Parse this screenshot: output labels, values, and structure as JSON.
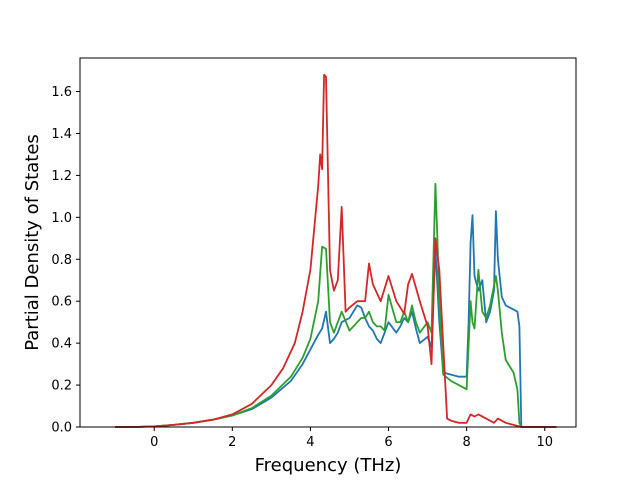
{
  "chart_data": {
    "type": "line",
    "title": "",
    "xlabel": "Frequency (THz)",
    "ylabel": "Partial Density of States",
    "xlim": [
      -1.9,
      10.8
    ],
    "ylim": [
      0.0,
      1.76
    ],
    "xticks": [
      0,
      2,
      4,
      6,
      8,
      10
    ],
    "yticks": [
      0.0,
      0.2,
      0.4,
      0.6,
      0.8,
      1.0,
      1.2,
      1.4,
      1.6
    ],
    "xtick_labels": [
      "0",
      "2",
      "4",
      "6",
      "8",
      "10"
    ],
    "ytick_labels": [
      "0.0",
      "0.2",
      "0.4",
      "0.6",
      "0.8",
      "1.0",
      "1.2",
      "1.4",
      "1.6"
    ],
    "grid": false,
    "legend": "none",
    "series": [
      {
        "color": "#1f77b4",
        "x": [
          -1.0,
          -0.5,
          0.0,
          0.5,
          1.0,
          1.5,
          2.0,
          2.5,
          3.0,
          3.5,
          3.8,
          4.0,
          4.2,
          4.3,
          4.4,
          4.5,
          4.6,
          4.7,
          4.8,
          5.0,
          5.2,
          5.3,
          5.4,
          5.5,
          5.6,
          5.7,
          5.8,
          5.9,
          6.0,
          6.2,
          6.3,
          6.4,
          6.5,
          6.6,
          6.7,
          6.8,
          7.0,
          7.1,
          7.2,
          7.3,
          7.4,
          7.6,
          7.8,
          8.0,
          8.05,
          8.1,
          8.15,
          8.2,
          8.3,
          8.4,
          8.5,
          8.6,
          8.7,
          8.75,
          8.8,
          8.9,
          9.0,
          9.2,
          9.3,
          9.35,
          9.4,
          10.0,
          10.3
        ],
        "y": [
          0.0,
          0.0,
          0.003,
          0.01,
          0.02,
          0.035,
          0.055,
          0.085,
          0.14,
          0.22,
          0.3,
          0.37,
          0.44,
          0.47,
          0.55,
          0.4,
          0.42,
          0.45,
          0.5,
          0.52,
          0.58,
          0.57,
          0.52,
          0.48,
          0.46,
          0.42,
          0.4,
          0.45,
          0.5,
          0.45,
          0.48,
          0.52,
          0.5,
          0.55,
          0.47,
          0.4,
          0.43,
          0.38,
          0.85,
          0.5,
          0.26,
          0.25,
          0.24,
          0.24,
          0.5,
          0.88,
          1.01,
          0.72,
          0.65,
          0.7,
          0.5,
          0.55,
          0.65,
          1.03,
          0.8,
          0.62,
          0.58,
          0.56,
          0.55,
          0.48,
          0.0,
          0.0,
          0.0
        ]
      },
      {
        "color": "#2ca02c",
        "x": [
          -1.0,
          -0.5,
          0.0,
          0.5,
          1.0,
          1.5,
          2.0,
          2.5,
          3.0,
          3.5,
          3.8,
          4.0,
          4.2,
          4.3,
          4.4,
          4.5,
          4.6,
          4.7,
          4.8,
          5.0,
          5.2,
          5.3,
          5.4,
          5.5,
          5.6,
          5.7,
          5.8,
          5.9,
          6.0,
          6.2,
          6.3,
          6.4,
          6.5,
          6.6,
          6.7,
          6.8,
          7.0,
          7.1,
          7.2,
          7.25,
          7.3,
          7.4,
          7.6,
          7.8,
          8.0,
          8.1,
          8.15,
          8.2,
          8.3,
          8.4,
          8.5,
          8.6,
          8.75,
          8.8,
          8.9,
          9.0,
          9.2,
          9.3,
          9.35,
          9.4,
          10.0
        ],
        "y": [
          0.0,
          0.0,
          0.003,
          0.01,
          0.02,
          0.035,
          0.055,
          0.09,
          0.15,
          0.24,
          0.33,
          0.42,
          0.6,
          0.86,
          0.85,
          0.5,
          0.45,
          0.5,
          0.55,
          0.46,
          0.5,
          0.52,
          0.52,
          0.55,
          0.5,
          0.48,
          0.48,
          0.46,
          0.63,
          0.5,
          0.5,
          0.55,
          0.5,
          0.58,
          0.5,
          0.45,
          0.5,
          0.45,
          1.16,
          0.9,
          0.6,
          0.25,
          0.22,
          0.2,
          0.18,
          0.6,
          0.5,
          0.47,
          0.75,
          0.55,
          0.52,
          0.58,
          0.72,
          0.65,
          0.45,
          0.32,
          0.26,
          0.18,
          0.02,
          0.0,
          0.0
        ]
      },
      {
        "color": "#d62728",
        "x": [
          -1.0,
          -0.5,
          0.0,
          0.5,
          1.0,
          1.5,
          2.0,
          2.5,
          3.0,
          3.3,
          3.6,
          3.8,
          4.0,
          4.1,
          4.2,
          4.25,
          4.3,
          4.35,
          4.4,
          4.5,
          4.6,
          4.7,
          4.8,
          4.9,
          5.0,
          5.2,
          5.4,
          5.5,
          5.6,
          5.8,
          6.0,
          6.2,
          6.4,
          6.5,
          6.6,
          6.8,
          7.0,
          7.1,
          7.2,
          7.3,
          7.5,
          7.6,
          7.8,
          8.0,
          8.1,
          8.2,
          8.3,
          8.5,
          8.7,
          8.8,
          9.0,
          9.2,
          9.4,
          10.0,
          10.3
        ],
        "y": [
          0.0,
          0.0,
          0.003,
          0.01,
          0.02,
          0.035,
          0.06,
          0.11,
          0.2,
          0.28,
          0.4,
          0.55,
          0.75,
          0.95,
          1.15,
          1.3,
          1.23,
          1.68,
          1.67,
          0.75,
          0.65,
          0.7,
          1.05,
          0.55,
          0.57,
          0.6,
          0.6,
          0.78,
          0.68,
          0.6,
          0.72,
          0.6,
          0.54,
          0.68,
          0.73,
          0.6,
          0.48,
          0.3,
          0.9,
          0.75,
          0.04,
          0.03,
          0.02,
          0.02,
          0.06,
          0.05,
          0.06,
          0.04,
          0.02,
          0.04,
          0.02,
          0.01,
          0.0,
          0.0,
          0.0
        ]
      }
    ]
  }
}
